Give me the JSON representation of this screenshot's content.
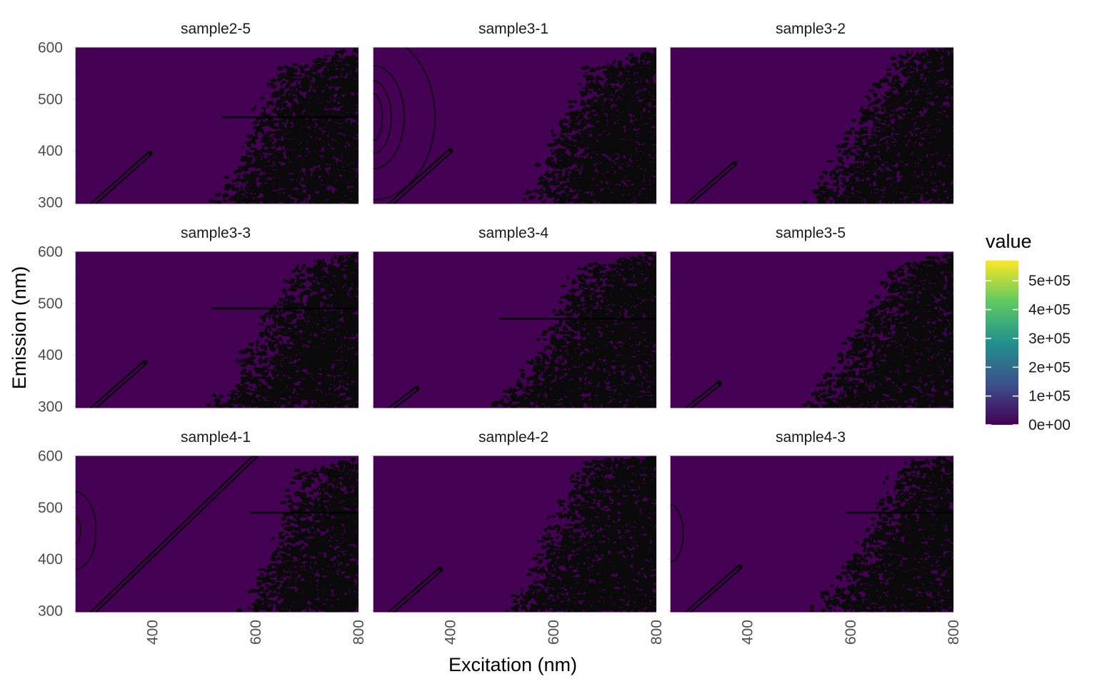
{
  "chart_data": {
    "type": "heatmap",
    "subtype": "contour-faceted",
    "xlabel": "Excitation (nm)",
    "ylabel": "Emission (nm)",
    "xlim": [
      245,
      800
    ],
    "ylim": [
      295,
      602
    ],
    "x_ticks": [
      400,
      600,
      800
    ],
    "y_ticks": [
      300,
      400,
      500,
      600
    ],
    "x_tick_labels": [
      "400",
      "600",
      "800"
    ],
    "y_tick_labels": [
      "300",
      "400",
      "500",
      "600"
    ],
    "fill_color": "#440154",
    "contour_color": "#000000",
    "grid": true,
    "legend": {
      "title": "value",
      "position": "right",
      "labels": [
        "5e+05",
        "4e+05",
        "3e+05",
        "2e+05",
        "1e+05",
        "0e+00"
      ],
      "values": [
        500000,
        400000,
        300000,
        200000,
        100000,
        0
      ],
      "min": 0,
      "max": 570000,
      "palette": "viridis",
      "colors": [
        "#440154",
        "#3b528b",
        "#21918c",
        "#5ec962",
        "#fde725"
      ]
    },
    "facets": [
      {
        "name": "sample2-5",
        "peak": null,
        "scatter_line_end": [
          395,
          395
        ],
        "line_em": 465,
        "line_x": [
          535,
          800
        ],
        "noise_edge": [
          [
            800,
            600
          ],
          [
            650,
            560
          ],
          [
            600,
            470
          ],
          [
            555,
            340
          ],
          [
            520,
            300
          ]
        ]
      },
      {
        "name": "sample3-1",
        "peak": {
          "x": 250,
          "y": 465,
          "radii": [
            [
              120,
              160
            ],
            [
              60,
              100
            ],
            [
              35,
              70
            ],
            [
              18,
              45
            ]
          ]
        },
        "scatter_line_end": [
          400,
          400
        ],
        "line_em": null,
        "line_x": null,
        "noise_edge": [
          [
            800,
            600
          ],
          [
            670,
            560
          ],
          [
            620,
            470
          ],
          [
            570,
            340
          ],
          [
            550,
            300
          ]
        ]
      },
      {
        "name": "sample3-2",
        "peak": null,
        "scatter_line_end": [
          375,
          375
        ],
        "line_em": null,
        "line_x": null,
        "noise_edge": [
          [
            800,
            600
          ],
          [
            700,
            590
          ],
          [
            630,
            480
          ],
          [
            560,
            360
          ],
          [
            520,
            300
          ]
        ]
      },
      {
        "name": "sample3-3",
        "peak": null,
        "scatter_line_end": [
          385,
          385
        ],
        "line_em": 490,
        "line_x": [
          515,
          800
        ],
        "noise_edge": [
          [
            800,
            600
          ],
          [
            680,
            570
          ],
          [
            620,
            480
          ],
          [
            560,
            350
          ],
          [
            515,
            300
          ]
        ]
      },
      {
        "name": "sample3-4",
        "peak": null,
        "scatter_line_end": [
          335,
          335
        ],
        "line_em": 470,
        "line_x": [
          495,
          800
        ],
        "noise_edge": [
          [
            800,
            600
          ],
          [
            650,
            570
          ],
          [
            590,
            440
          ],
          [
            530,
            350
          ],
          [
            480,
            300
          ]
        ]
      },
      {
        "name": "sample3-5",
        "peak": null,
        "scatter_line_end": [
          345,
          345
        ],
        "line_em": null,
        "line_x": null,
        "noise_edge": [
          [
            800,
            600
          ],
          [
            680,
            570
          ],
          [
            620,
            470
          ],
          [
            560,
            360
          ],
          [
            510,
            300
          ]
        ]
      },
      {
        "name": "sample4-1",
        "peak": {
          "x": 250,
          "y": 455,
          "radii": [
            [
              40,
              75
            ],
            [
              10,
              25
            ]
          ]
        },
        "scatter_line_end": [
          600,
          600
        ],
        "line_em": 490,
        "line_x": [
          590,
          800
        ],
        "noise_edge": [
          [
            800,
            600
          ],
          [
            690,
            570
          ],
          [
            650,
            470
          ],
          [
            600,
            340
          ],
          [
            575,
            300
          ]
        ]
      },
      {
        "name": "sample4-2",
        "peak": null,
        "scatter_line_end": [
          380,
          380
        ],
        "line_em": null,
        "line_x": null,
        "noise_edge": [
          [
            800,
            600
          ],
          [
            650,
            590
          ],
          [
            600,
            470
          ],
          [
            550,
            360
          ],
          [
            510,
            300
          ]
        ]
      },
      {
        "name": "sample4-3",
        "peak": {
          "x": 250,
          "y": 450,
          "radii": [
            [
              25,
              55
            ]
          ]
        },
        "scatter_line_end": [
          385,
          385
        ],
        "line_em": 490,
        "line_x": [
          590,
          800
        ],
        "noise_edge": [
          [
            800,
            600
          ],
          [
            700,
            590
          ],
          [
            640,
            480
          ],
          [
            580,
            360
          ],
          [
            520,
            300
          ]
        ]
      }
    ]
  }
}
